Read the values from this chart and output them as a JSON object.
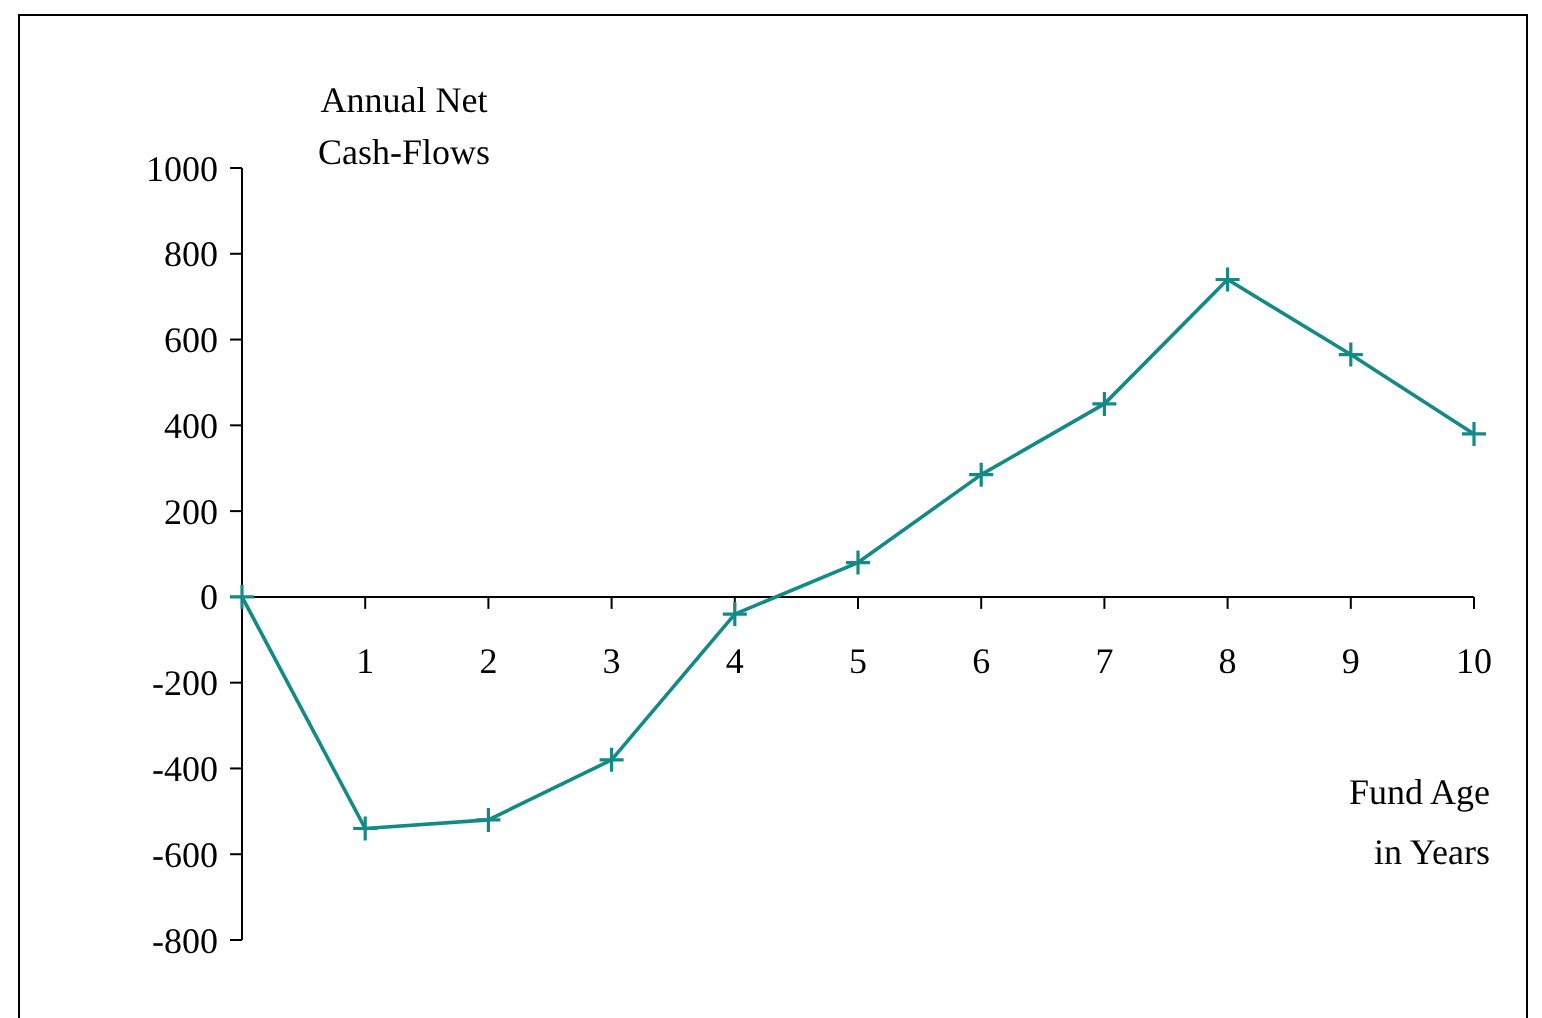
{
  "chart_data": {
    "type": "line",
    "ylabel": "Annual Net\nCash-Flows",
    "xlabel": "Fund Age\nin Years",
    "x": [
      0,
      1,
      2,
      3,
      4,
      5,
      6,
      7,
      8,
      9,
      10
    ],
    "series": [
      {
        "color": "#138a87",
        "values": [
          0,
          -540,
          -520,
          -380,
          -40,
          80,
          285,
          450,
          740,
          565,
          380
        ]
      }
    ],
    "xlim": [
      0,
      10
    ],
    "xticks": [
      1,
      2,
      3,
      4,
      5,
      6,
      7,
      8,
      9,
      10
    ],
    "ylim": [
      -800,
      1000
    ],
    "yticks": [
      -800,
      -600,
      -400,
      -200,
      0,
      200,
      400,
      600,
      800,
      1000
    ],
    "marker": "cross",
    "line_style": "solid",
    "grid": false
  }
}
